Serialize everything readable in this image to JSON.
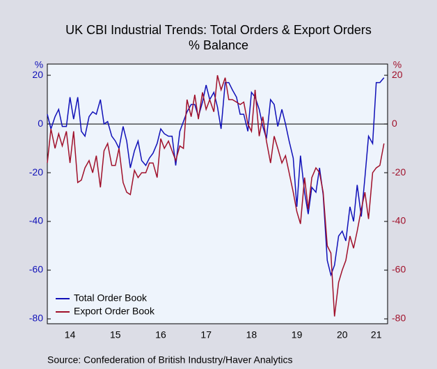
{
  "chart_data": {
    "type": "line",
    "title": "UK CBI Industrial Trends: Total Orders & Export Orders",
    "subtitle": "% Balance",
    "y_label": "%",
    "y2_label": "%",
    "source": "Source:   Confederation of British Industry/Haver Analytics",
    "x": [
      2014.0,
      2014.08,
      2014.17,
      2014.25,
      2014.33,
      2014.42,
      2014.5,
      2014.58,
      2014.67,
      2014.75,
      2014.83,
      2014.92,
      2015.0,
      2015.08,
      2015.17,
      2015.25,
      2015.33,
      2015.42,
      2015.5,
      2015.58,
      2015.67,
      2015.75,
      2015.83,
      2015.92,
      2016.0,
      2016.08,
      2016.17,
      2016.25,
      2016.33,
      2016.42,
      2016.5,
      2016.58,
      2016.67,
      2016.75,
      2016.83,
      2016.92,
      2017.0,
      2017.08,
      2017.17,
      2017.25,
      2017.33,
      2017.42,
      2017.5,
      2017.58,
      2017.67,
      2017.75,
      2017.83,
      2017.92,
      2018.0,
      2018.08,
      2018.17,
      2018.25,
      2018.33,
      2018.42,
      2018.5,
      2018.58,
      2018.67,
      2018.75,
      2018.83,
      2018.92,
      2019.0,
      2019.08,
      2019.17,
      2019.25,
      2019.33,
      2019.42,
      2019.5,
      2019.58,
      2019.67,
      2019.75,
      2019.83,
      2019.92,
      2020.0,
      2020.08,
      2020.17,
      2020.25,
      2020.33,
      2020.42,
      2020.5,
      2020.58,
      2020.67,
      2020.75,
      2020.83,
      2020.92,
      2021.0,
      2021.08,
      2021.17,
      2021.25,
      2021.33,
      2021.42
    ],
    "series": [
      {
        "name": "Total Order Book",
        "color": "#1010b8",
        "values": [
          4,
          -2,
          3,
          6,
          -1,
          -1,
          11,
          2,
          11,
          -3,
          -5,
          3,
          5,
          4,
          10,
          0,
          1,
          -5,
          -7,
          -10,
          -1,
          -7,
          -18,
          -11,
          -7,
          -15,
          -17,
          -14,
          -12,
          -8,
          -2,
          -4,
          -5,
          -5,
          -17,
          -3,
          1,
          5,
          8,
          8,
          3,
          9,
          16,
          10,
          13,
          7,
          -2,
          17,
          17,
          14,
          11,
          4,
          4,
          -3,
          13,
          11,
          6,
          -1,
          -6,
          10,
          8,
          -1,
          6,
          0,
          -7,
          -14,
          -34,
          -13,
          -28,
          -37,
          -26,
          -28,
          -18,
          -29,
          -56,
          -62,
          -58,
          -46,
          -44,
          -48,
          -34,
          -40,
          -25,
          -38,
          -22,
          -5,
          -8,
          17,
          17,
          19
        ]
      },
      {
        "name": "Export Order Book",
        "color": "#a0102a",
        "axis": "y2",
        "values": [
          -16,
          -2,
          -10,
          -4,
          -9,
          -3,
          -16,
          -3,
          -24,
          -23,
          -18,
          -15,
          -20,
          -13,
          -26,
          -11,
          -8,
          -17,
          -17,
          -10,
          -24,
          -28,
          -29,
          -19,
          -22,
          -20,
          -20,
          -16,
          -16,
          -22,
          -6,
          -10,
          -7,
          -11,
          -15,
          -9,
          -10,
          10,
          3,
          12,
          2,
          13,
          6,
          10,
          5,
          20,
          14,
          19,
          10,
          10,
          9,
          8,
          9,
          0,
          -3,
          14,
          -5,
          3,
          -7,
          -16,
          -5,
          -10,
          -16,
          -13,
          -20,
          -28,
          -36,
          -41,
          -22,
          -35,
          -22,
          -18,
          -20,
          -28,
          -50,
          -53,
          -79,
          -65,
          -60,
          -56,
          -46,
          -51,
          -44,
          -35,
          -28,
          -39,
          -20,
          -18,
          -17,
          -8
        ]
      }
    ],
    "xlim": [
      2014,
      2021.5
    ],
    "xticks": [
      {
        "value": 2014.5,
        "label": "14"
      },
      {
        "value": 2015.5,
        "label": "15"
      },
      {
        "value": 2016.5,
        "label": "16"
      },
      {
        "value": 2017.5,
        "label": "17"
      },
      {
        "value": 2018.5,
        "label": "18"
      },
      {
        "value": 2019.5,
        "label": "19"
      },
      {
        "value": 2020.5,
        "label": "20"
      },
      {
        "value": 2021.25,
        "label": "21"
      }
    ],
    "ylim": [
      -82,
      24.6
    ],
    "yticks": [
      -80,
      -60,
      -40,
      -20,
      0,
      20
    ],
    "y2lim": [
      -82,
      24.6
    ],
    "y2ticks": [
      -80,
      -60,
      -40,
      -20,
      0,
      20
    ],
    "legend": "lower left"
  }
}
